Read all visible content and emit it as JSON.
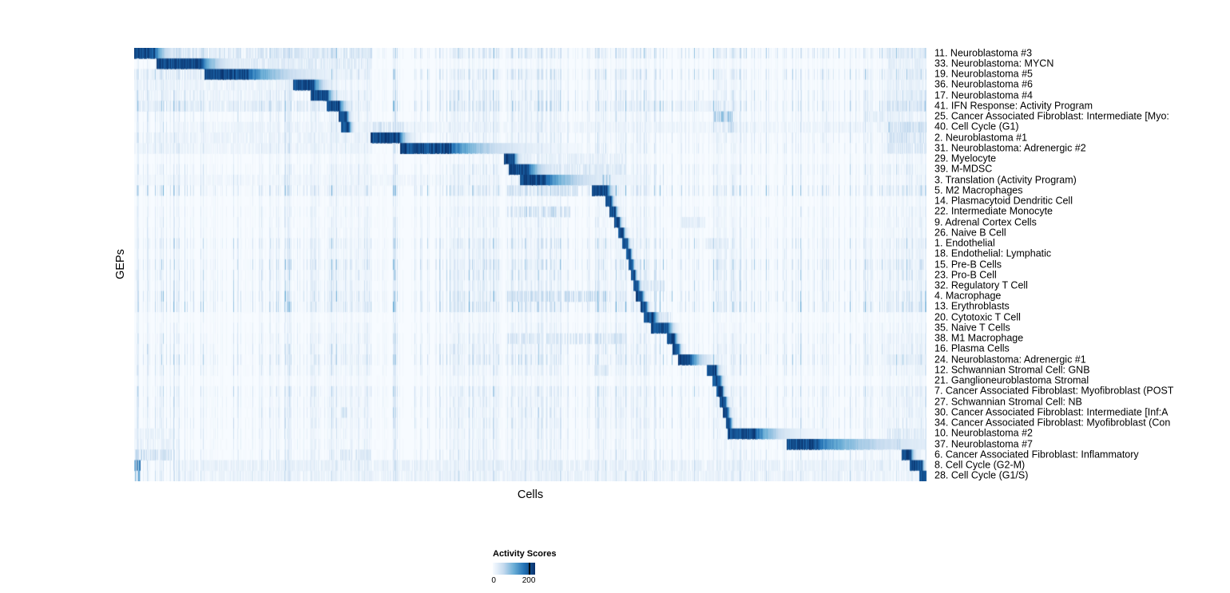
{
  "chart_data": {
    "type": "heatmap",
    "xlabel": "Cells",
    "ylabel": "GEPs",
    "legend": {
      "title": "Activity Scores",
      "min": 0,
      "max": 200
    },
    "colormap_stops": [
      [
        0,
        "#f7fbff"
      ],
      [
        0.25,
        "#c6dbef"
      ],
      [
        0.5,
        "#6baed6"
      ],
      [
        0.75,
        "#2171b5"
      ],
      [
        1,
        "#08306b"
      ]
    ],
    "noise_bands": [
      [
        0.22,
        0.3
      ],
      [
        0.4,
        0.46
      ],
      [
        0.47,
        0.54
      ],
      [
        0.58,
        0.65
      ],
      [
        0.73,
        0.76
      ],
      [
        0.94,
        1.0
      ]
    ],
    "rows": [
      {
        "label": "11. Neuroblastoma #3",
        "block": [
          0.0,
          0.026
        ],
        "fade": 0.02,
        "extra": [
          [
            0.03,
            0.3,
            0.22
          ],
          [
            0.95,
            1.0,
            0.18
          ]
        ]
      },
      {
        "label": "33. Neuroblastoma: MYCN",
        "block": [
          0.028,
          0.086
        ],
        "fade": 0.03,
        "extra": [
          [
            0.09,
            0.3,
            0.18
          ],
          [
            0.95,
            1.0,
            0.15
          ]
        ]
      },
      {
        "label": "19. Neuroblastoma #5",
        "block": [
          0.088,
          0.145
        ],
        "fade": 0.07,
        "extra": [
          [
            0.0,
            0.085,
            0.15
          ],
          [
            0.95,
            1.0,
            0.15
          ]
        ]
      },
      {
        "label": "36. Neuroblastoma #6",
        "block": [
          0.2,
          0.227
        ],
        "fade": 0.015,
        "extra": [
          [
            0.0,
            0.2,
            0.1
          ],
          [
            0.95,
            1.0,
            0.12
          ]
        ]
      },
      {
        "label": "17. Neuroblastoma #4",
        "block": [
          0.222,
          0.244
        ],
        "fade": 0.01,
        "extra": [
          [
            0.0,
            0.2,
            0.1
          ],
          [
            0.95,
            1.0,
            0.12
          ]
        ]
      },
      {
        "label": "41. IFN Response: Activity Program",
        "block": [
          0.242,
          0.259
        ],
        "fade": 0.01,
        "extra": [
          [
            0.0,
            0.24,
            0.15
          ],
          [
            0.6,
            0.75,
            0.1
          ],
          [
            0.95,
            1.0,
            0.25
          ]
        ]
      },
      {
        "label": "25. Cancer Associated Fibroblast: Intermediate [Myo:",
        "block": [
          0.258,
          0.268
        ],
        "fade": 0.005,
        "extra": [
          [
            0.73,
            0.755,
            0.45
          ],
          [
            0.92,
            0.97,
            0.15
          ]
        ]
      },
      {
        "label": "40. Cell Cycle (G1)",
        "block": [
          0.261,
          0.271
        ],
        "fade": 0.005,
        "extra": [
          [
            0.3,
            0.34,
            0.25
          ],
          [
            0.74,
            0.76,
            0.3
          ],
          [
            0.05,
            0.95,
            0.08
          ],
          [
            0.95,
            1.0,
            0.3
          ]
        ]
      },
      {
        "label": "2. Neuroblastoma #1",
        "block": [
          0.298,
          0.335
        ],
        "fade": 0.012,
        "extra": [
          [
            0.0,
            0.29,
            0.1
          ],
          [
            0.95,
            1.0,
            0.25
          ]
        ]
      },
      {
        "label": "31. Neuroblastoma: Adrenergic #2",
        "block": [
          0.335,
          0.4
        ],
        "fade": 0.075,
        "extra": [
          [
            0.0,
            0.3,
            0.08
          ],
          [
            0.95,
            1.0,
            0.22
          ]
        ]
      },
      {
        "label": "29. Myelocyte",
        "block": [
          0.466,
          0.479
        ],
        "fade": 0.008,
        "extra": [
          [
            0.49,
            0.62,
            0.15
          ]
        ]
      },
      {
        "label": "39. M-MDSC",
        "block": [
          0.472,
          0.497
        ],
        "fade": 0.025,
        "extra": [
          [
            0.5,
            0.62,
            0.2
          ]
        ]
      },
      {
        "label": "3. Translation (Activity Program)",
        "block": [
          0.486,
          0.52
        ],
        "fade": 0.06,
        "extra": [
          [
            0.59,
            0.6,
            0.5
          ],
          [
            0.0,
            0.46,
            0.06
          ]
        ]
      },
      {
        "label": "5. M2 Macrophages",
        "block": [
          0.577,
          0.597
        ],
        "fade": 0.008,
        "extra": [
          [
            0.47,
            0.56,
            0.25
          ]
        ]
      },
      {
        "label": "14. Plasmacytoid Dendritic Cell",
        "block": [
          0.594,
          0.602
        ],
        "fade": 0.004,
        "extra": []
      },
      {
        "label": "22. Intermediate Monocyte",
        "block": [
          0.599,
          0.607
        ],
        "fade": 0.004,
        "extra": [
          [
            0.47,
            0.55,
            0.3
          ]
        ]
      },
      {
        "label": "9. Adrenal Cortex Cells",
        "block": [
          0.605,
          0.612
        ],
        "fade": 0.004,
        "extra": [
          [
            0.69,
            0.72,
            0.15
          ]
        ]
      },
      {
        "label": "26. Naive B Cell",
        "block": [
          0.61,
          0.617
        ],
        "fade": 0.004,
        "extra": []
      },
      {
        "label": "1. Endothelial",
        "block": [
          0.615,
          0.622
        ],
        "fade": 0.004,
        "extra": [
          [
            0.72,
            0.75,
            0.15
          ]
        ]
      },
      {
        "label": "18. Endothelial: Lymphatic",
        "block": [
          0.62,
          0.626
        ],
        "fade": 0.003,
        "extra": []
      },
      {
        "label": "15. Pre-B Cells",
        "block": [
          0.623,
          0.629
        ],
        "fade": 0.003,
        "extra": []
      },
      {
        "label": "23. Pro-B Cell",
        "block": [
          0.627,
          0.632
        ],
        "fade": 0.003,
        "extra": []
      },
      {
        "label": "32. Regulatory T Cell",
        "block": [
          0.63,
          0.636
        ],
        "fade": 0.004,
        "extra": [
          [
            0.64,
            0.67,
            0.2
          ]
        ]
      },
      {
        "label": "4. Macrophage",
        "block": [
          0.633,
          0.641
        ],
        "fade": 0.004,
        "extra": [
          [
            0.47,
            0.6,
            0.3
          ]
        ]
      },
      {
        "label": "13. Erythroblasts",
        "block": [
          0.639,
          0.646
        ],
        "fade": 0.004,
        "extra": []
      },
      {
        "label": "20. Cytotoxic T Cell",
        "block": [
          0.643,
          0.656
        ],
        "fade": 0.008,
        "extra": [
          [
            0.66,
            0.68,
            0.25
          ]
        ]
      },
      {
        "label": "35. Naive T Cells",
        "block": [
          0.652,
          0.674
        ],
        "fade": 0.008,
        "extra": []
      },
      {
        "label": "38. M1 Macrophage",
        "block": [
          0.672,
          0.682
        ],
        "fade": 0.005,
        "extra": [
          [
            0.47,
            0.62,
            0.25
          ]
        ]
      },
      {
        "label": "16. Plasma Cells",
        "block": [
          0.679,
          0.687
        ],
        "fade": 0.004,
        "extra": []
      },
      {
        "label": "24. Neuroblastoma: Adrenergic #1",
        "block": [
          0.686,
          0.703
        ],
        "fade": 0.02,
        "extra": [
          [
            0.95,
            1.0,
            0.15
          ]
        ]
      },
      {
        "label": "12. Schwannian Stromal Cell: GNB",
        "block": [
          0.722,
          0.734
        ],
        "fade": 0.006,
        "extra": [
          [
            0.58,
            0.6,
            0.2
          ]
        ]
      },
      {
        "label": "21. Ganglioneuroblastoma Stromal",
        "block": [
          0.729,
          0.739
        ],
        "fade": 0.005,
        "extra": []
      },
      {
        "label": "7. Cancer Associated Fibroblast: Myofibroblast (POST",
        "block": [
          0.734,
          0.742
        ],
        "fade": 0.004,
        "extra": []
      },
      {
        "label": "27. Schwannian Stromal Cell: NB",
        "block": [
          0.738,
          0.746
        ],
        "fade": 0.004,
        "extra": []
      },
      {
        "label": "30. Cancer Associated Fibroblast: Intermediate [Inf:A",
        "block": [
          0.742,
          0.749
        ],
        "fade": 0.004,
        "extra": [
          [
            0.26,
            0.27,
            0.45
          ]
        ]
      },
      {
        "label": "34. Cancer Associated Fibroblast: Myofibroblast (Con",
        "block": [
          0.746,
          0.752
        ],
        "fade": 0.004,
        "extra": []
      },
      {
        "label": "10. Neuroblastoma #2",
        "block": [
          0.748,
          0.785
        ],
        "fade": 0.04,
        "extra": [
          [
            0.0,
            0.05,
            0.12
          ],
          [
            0.95,
            1.0,
            0.2
          ]
        ]
      },
      {
        "label": "37. Neuroblastoma #7",
        "block": [
          0.823,
          0.862
        ],
        "fade": 0.11,
        "extra": [
          [
            0.0,
            0.05,
            0.1
          ],
          [
            0.95,
            0.97,
            0.3
          ]
        ]
      },
      {
        "label": "6. Cancer Associated Fibroblast: Inflammatory",
        "block": [
          0.968,
          0.98
        ],
        "fade": 0.006,
        "extra": [
          [
            0.0,
            0.05,
            0.3
          ],
          [
            0.26,
            0.3,
            0.2
          ]
        ]
      },
      {
        "label": "8. Cell Cycle (G2-M)",
        "block": [
          0.978,
          0.994
        ],
        "fade": 0.004,
        "extra": [
          [
            0.0,
            0.008,
            0.9
          ],
          [
            0.05,
            0.95,
            0.12
          ]
        ]
      },
      {
        "label": "28. Cell Cycle (G1/S)",
        "block": [
          0.99,
          1.0
        ],
        "fade": 0.003,
        "extra": [
          [
            0.0,
            0.008,
            0.7
          ],
          [
            0.05,
            0.95,
            0.1
          ]
        ]
      }
    ]
  }
}
